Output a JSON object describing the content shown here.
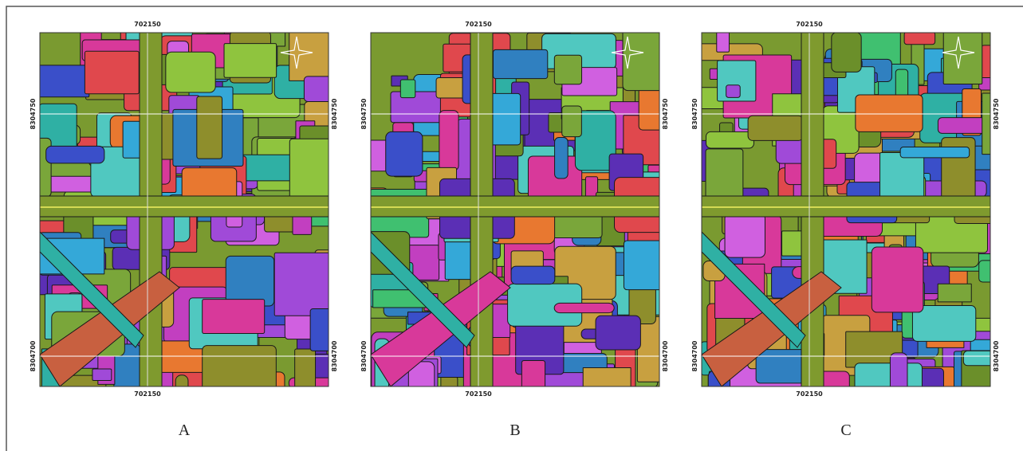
{
  "panels": [
    {
      "label": "A",
      "x_top": "702150",
      "x_bottom": "702150",
      "y_left_upper": "8304750",
      "y_left_lower": "8304700",
      "y_right_upper": "8304750",
      "y_right_lower": "8304700"
    },
    {
      "label": "B",
      "x_top": "702150",
      "x_bottom": "702150",
      "y_left_upper": "8304750",
      "y_left_lower": "8304700",
      "y_right_upper": "8304750",
      "y_right_lower": "8304700"
    },
    {
      "label": "C",
      "x_top": "702150",
      "x_bottom": "702150",
      "y_left_upper": "8304750",
      "y_left_lower": "8304700",
      "y_right_upper": "8304750",
      "y_right_lower": "8304700"
    }
  ]
}
